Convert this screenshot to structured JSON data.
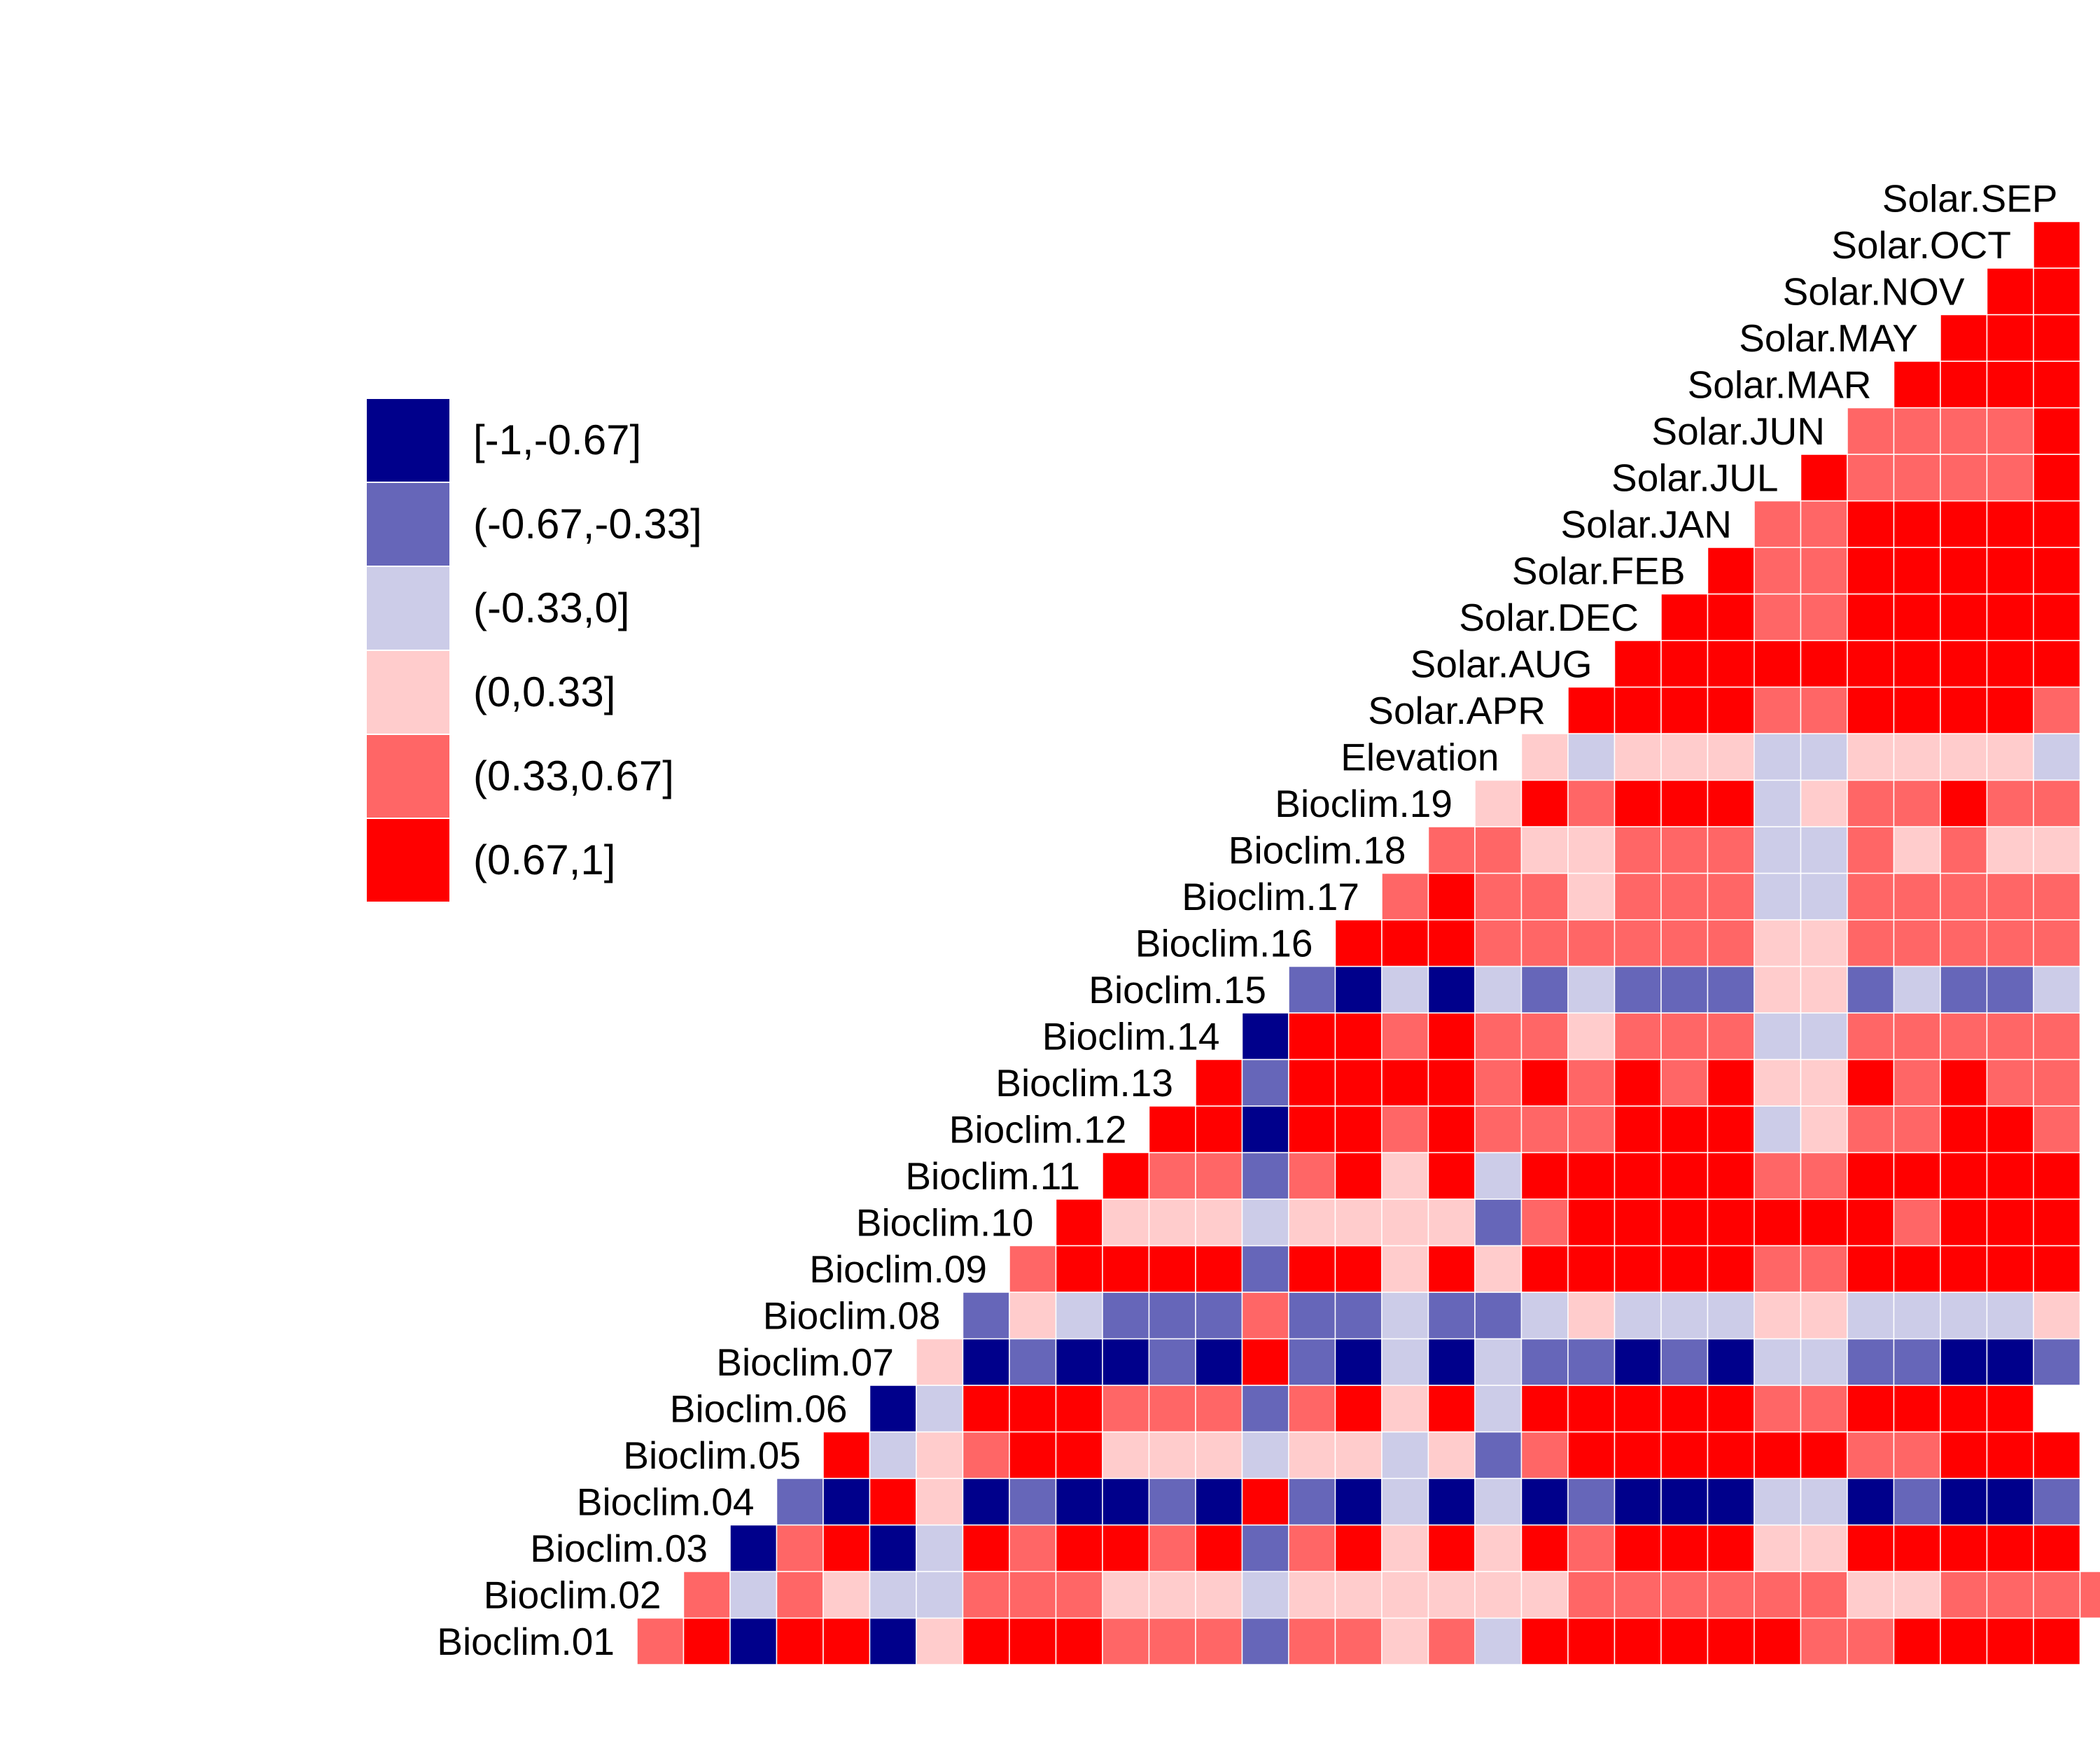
{
  "chart_data": {
    "type": "heatmap",
    "title": "",
    "variables": [
      "Bioclim.01",
      "Bioclim.02",
      "Bioclim.03",
      "Bioclim.04",
      "Bioclim.05",
      "Bioclim.06",
      "Bioclim.07",
      "Bioclim.08",
      "Bioclim.09",
      "Bioclim.10",
      "Bioclim.11",
      "Bioclim.12",
      "Bioclim.13",
      "Bioclim.14",
      "Bioclim.15",
      "Bioclim.16",
      "Bioclim.17",
      "Bioclim.18",
      "Bioclim.19",
      "Elevation",
      "Solar.APR",
      "Solar.AUG",
      "Solar.DEC",
      "Solar.FEB",
      "Solar.JAN",
      "Solar.JUL",
      "Solar.JUN",
      "Solar.MAR",
      "Solar.MAY",
      "Solar.NOV",
      "Solar.OCT",
      "Solar.SEP"
    ],
    "legend": {
      "position": "left",
      "bins": [
        {
          "label": "[-1,-0.67]",
          "color": "#00008B"
        },
        {
          "label": "(-0.67,-0.33]",
          "color": "#6666B9"
        },
        {
          "label": "(-0.33,0]",
          "color": "#CCCCE8"
        },
        {
          "label": "(0,0.33]",
          "color": "#FFCCCC"
        },
        {
          "label": "(0.33,0.67]",
          "color": "#FF6666"
        },
        {
          "label": "(0.67,1]",
          "color": "#FF0000"
        }
      ]
    },
    "rows_bin_index_note_levels": "0=[-1,-0.67] 1=(-0.67,-0.33] 2=(-0.33,0] 3=(0,0.33] 4=(0.33,0.67] 5=(0.67,1]",
    "rows": [
      [
        4,
        5,
        0,
        5,
        5,
        0,
        3,
        5,
        5,
        5,
        4,
        4,
        4,
        1,
        4,
        4,
        3,
        4,
        2,
        5,
        5,
        5,
        5,
        5,
        5,
        4,
        4,
        5,
        5,
        5,
        5
      ],
      [
        4,
        2,
        4,
        3,
        2,
        2,
        4,
        4,
        4,
        3,
        3,
        3,
        2,
        3,
        3,
        3,
        3,
        3,
        3,
        4,
        4,
        4,
        4,
        4,
        4,
        3,
        3,
        4,
        4,
        4,
        4
      ],
      [
        0,
        4,
        5,
        0,
        2,
        5,
        4,
        5,
        5,
        4,
        5,
        1,
        4,
        5,
        3,
        5,
        3,
        5,
        4,
        5,
        5,
        5,
        3,
        3,
        5,
        5,
        5,
        5,
        5
      ],
      [
        1,
        0,
        5,
        3,
        0,
        1,
        0,
        0,
        1,
        0,
        5,
        1,
        0,
        2,
        0,
        2,
        0,
        1,
        0,
        0,
        0,
        2,
        2,
        0,
        1,
        0,
        0,
        1
      ],
      [
        5,
        2,
        3,
        4,
        5,
        5,
        3,
        3,
        3,
        2,
        3,
        3,
        2,
        3,
        1,
        4,
        5,
        5,
        5,
        5,
        5,
        5,
        4,
        4,
        5,
        5,
        5
      ],
      [
        0,
        2,
        5,
        5,
        5,
        4,
        4,
        4,
        1,
        4,
        5,
        3,
        5,
        2,
        5,
        5,
        5,
        5,
        5,
        4,
        4,
        5,
        5,
        5,
        5
      ],
      [
        3,
        0,
        1,
        0,
        0,
        1,
        0,
        5,
        1,
        0,
        2,
        0,
        2,
        1,
        1,
        0,
        1,
        0,
        2,
        2,
        1,
        1,
        0,
        0,
        1
      ],
      [
        1,
        3,
        2,
        1,
        1,
        1,
        4,
        1,
        1,
        2,
        1,
        1,
        2,
        3,
        2,
        2,
        2,
        3,
        3,
        2,
        2,
        2,
        2,
        3
      ],
      [
        4,
        5,
        5,
        5,
        5,
        1,
        5,
        5,
        3,
        5,
        3,
        5,
        5,
        5,
        5,
        5,
        4,
        4,
        5,
        5,
        5,
        5,
        5
      ],
      [
        5,
        3,
        3,
        3,
        2,
        3,
        3,
        3,
        3,
        1,
        4,
        5,
        5,
        5,
        5,
        5,
        5,
        5,
        4,
        5,
        5,
        5
      ],
      [
        5,
        4,
        4,
        1,
        4,
        5,
        3,
        5,
        2,
        5,
        5,
        5,
        5,
        5,
        4,
        4,
        5,
        5,
        5,
        5,
        5
      ],
      [
        5,
        5,
        0,
        5,
        5,
        4,
        5,
        4,
        4,
        4,
        5,
        5,
        5,
        2,
        3,
        4,
        4,
        5,
        5,
        4
      ],
      [
        5,
        1,
        5,
        5,
        5,
        5,
        4,
        5,
        4,
        5,
        4,
        5,
        3,
        3,
        5,
        4,
        5,
        4,
        4
      ],
      [
        0,
        5,
        5,
        4,
        5,
        4,
        4,
        3,
        4,
        4,
        4,
        2,
        2,
        4,
        4,
        4,
        4,
        4
      ],
      [
        1,
        0,
        2,
        0,
        2,
        1,
        2,
        1,
        1,
        1,
        3,
        3,
        1,
        2,
        1,
        1,
        2
      ],
      [
        5,
        5,
        5,
        4,
        4,
        4,
        4,
        4,
        4,
        3,
        3,
        4,
        4,
        4,
        4,
        4
      ],
      [
        4,
        5,
        4,
        4,
        3,
        4,
        4,
        4,
        2,
        2,
        4,
        4,
        4,
        4,
        4
      ],
      [
        4,
        4,
        3,
        3,
        4,
        4,
        4,
        2,
        2,
        4,
        3,
        4,
        3,
        3
      ],
      [
        3,
        5,
        4,
        5,
        5,
        5,
        2,
        3,
        4,
        4,
        5,
        4,
        4
      ],
      [
        3,
        2,
        3,
        3,
        3,
        2,
        2,
        3,
        3,
        3,
        3,
        2
      ],
      [
        5,
        5,
        5,
        5,
        4,
        4,
        5,
        5,
        5,
        5,
        4
      ],
      [
        5,
        5,
        5,
        5,
        5,
        5,
        5,
        5,
        5,
        5
      ],
      [
        5,
        5,
        4,
        4,
        5,
        5,
        5,
        5,
        5
      ],
      [
        5,
        4,
        4,
        5,
        5,
        5,
        5,
        5
      ],
      [
        4,
        4,
        5,
        5,
        5,
        5,
        5
      ],
      [
        5,
        4,
        4,
        4,
        4,
        5
      ],
      [
        4,
        4,
        4,
        4,
        5
      ],
      [
        5,
        5,
        5,
        5
      ],
      [
        5,
        5,
        5
      ],
      [
        5,
        5
      ],
      [
        5
      ]
    ]
  }
}
